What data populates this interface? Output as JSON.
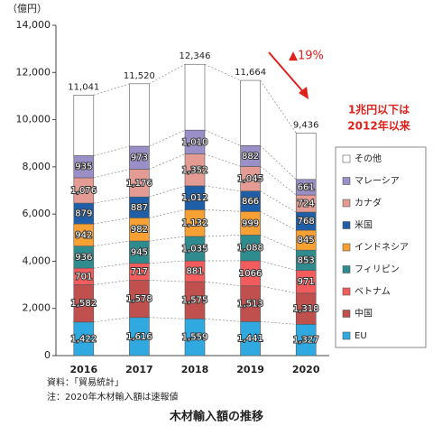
{
  "chart_data": {
    "type": "stacked-bar",
    "title": "木材輸入額の推移",
    "y_unit_label": "（億円）",
    "categories": [
      "2016",
      "2017",
      "2018",
      "2019",
      "2020"
    ],
    "series": [
      {
        "name": "EU",
        "color": "#2fa9e0",
        "values": [
          1422,
          1616,
          1559,
          1441,
          1327
        ],
        "value_labels": [
          "1,422",
          "1,616",
          "1,559",
          "1,441",
          "1,327"
        ]
      },
      {
        "name": "中国",
        "color": "#c0504d",
        "values": [
          1582,
          1578,
          1575,
          1513,
          1318
        ],
        "value_labels": [
          "1,582",
          "1,578",
          "1,575",
          "1,513",
          "1,318"
        ]
      },
      {
        "name": "ベトナム",
        "color": "#f25c5c",
        "values": [
          701,
          717,
          881,
          1066,
          971
        ]
      },
      {
        "name": "フィリピン",
        "color": "#2e8b8e",
        "values": [
          936,
          945,
          1035,
          1088,
          853
        ],
        "value_labels": [
          "936",
          "945",
          "1,035",
          "1,088",
          "853"
        ]
      },
      {
        "name": "インドネシア",
        "color": "#f7a033",
        "values": [
          942,
          982,
          1132,
          999,
          845
        ],
        "value_labels": [
          "942",
          "982",
          "1,132",
          "999",
          "845"
        ]
      },
      {
        "name": "米国",
        "color": "#1f5fa8",
        "values": [
          879,
          887,
          1012,
          866,
          768
        ],
        "value_labels": [
          "879",
          "887",
          "1,012",
          "866",
          "768"
        ]
      },
      {
        "name": "カナダ",
        "color": "#e39b93",
        "values": [
          1076,
          1176,
          1352,
          1045,
          724
        ],
        "value_labels": [
          "1,076",
          "1,176",
          "1,352",
          "1,045",
          "724"
        ]
      },
      {
        "name": "マレーシア",
        "color": "#9b8fc7",
        "values": [
          935,
          973,
          1010,
          882,
          661
        ],
        "value_labels": [
          "935",
          "973",
          "1,010",
          "882",
          "661"
        ]
      },
      {
        "name": "その他",
        "color": "#ffffff",
        "values": [
          2568,
          2646,
          2790,
          2764,
          1969
        ]
      }
    ],
    "totals": {
      "values": [
        11041,
        11520,
        12346,
        11664,
        9436
      ],
      "value_labels": [
        "11,041",
        "11,520",
        "12,346",
        "11,664",
        "9,436"
      ]
    },
    "ylim": [
      0,
      14000
    ],
    "yticks": [
      0,
      {
        "value": 2000,
        "label": "2,000"
      },
      {
        "value": 4000,
        "label": "4,000"
      },
      {
        "value": 6000,
        "label": "6,000"
      },
      {
        "value": 8000,
        "label": "8,000"
      },
      {
        "value": 10000,
        "label": "10,000"
      },
      {
        "value": 12000,
        "label": "12,000"
      },
      {
        "value": 14000,
        "label": "14,000"
      }
    ],
    "annotations": {
      "change": "▲19%",
      "note_line1": "1兆円以下は",
      "note_line2": "2012年以来"
    },
    "source": "資料：「貿易統計」",
    "footnote": "注：2020年木材輸入額は速報値"
  }
}
